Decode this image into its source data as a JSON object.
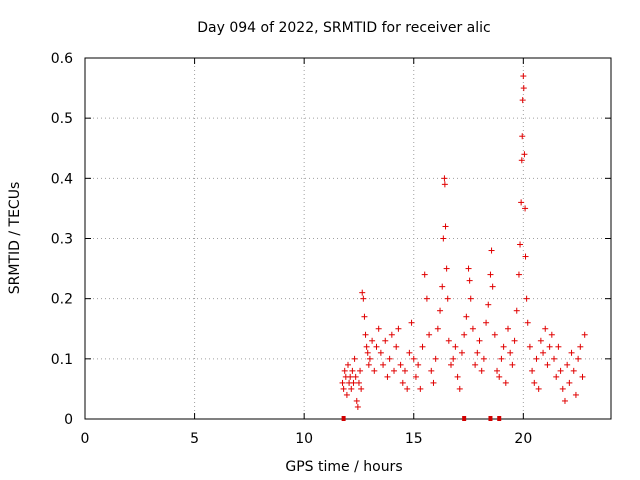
{
  "chart_data": {
    "type": "scatter",
    "title": "Day 094 of 2022, SRMTID for receiver alic",
    "xlabel": "GPS time / hours",
    "ylabel": "SRMTID / TECUs",
    "xlim": [
      0,
      24
    ],
    "ylim": [
      0,
      0.6
    ],
    "xticks": [
      0,
      5,
      10,
      15,
      20
    ],
    "yticks": [
      0,
      0.1,
      0.2,
      0.3,
      0.4,
      0.5,
      0.6
    ],
    "ytick_labels": [
      "0",
      "0.1",
      "0.2",
      "0.3",
      "0.4",
      "0.5",
      "0.6"
    ],
    "grid": true,
    "marker": "+",
    "color": "#e00000",
    "data_gap_markers_x": [
      11.8,
      17.3,
      18.5,
      18.9
    ],
    "series": [
      {
        "name": "SRMTID",
        "points": [
          [
            11.75,
            0.06
          ],
          [
            11.8,
            0.05
          ],
          [
            11.85,
            0.08
          ],
          [
            11.9,
            0.07
          ],
          [
            11.95,
            0.04
          ],
          [
            12.0,
            0.09
          ],
          [
            12.05,
            0.06
          ],
          [
            12.1,
            0.07
          ],
          [
            12.15,
            0.05
          ],
          [
            12.2,
            0.08
          ],
          [
            12.25,
            0.06
          ],
          [
            12.3,
            0.1
          ],
          [
            12.35,
            0.07
          ],
          [
            12.4,
            0.03
          ],
          [
            12.45,
            0.02
          ],
          [
            12.5,
            0.06
          ],
          [
            12.55,
            0.08
          ],
          [
            12.6,
            0.05
          ],
          [
            12.65,
            0.21
          ],
          [
            12.7,
            0.2
          ],
          [
            12.75,
            0.17
          ],
          [
            12.8,
            0.14
          ],
          [
            12.85,
            0.12
          ],
          [
            12.9,
            0.11
          ],
          [
            12.95,
            0.09
          ],
          [
            13.0,
            0.1
          ],
          [
            13.1,
            0.13
          ],
          [
            13.2,
            0.08
          ],
          [
            13.3,
            0.12
          ],
          [
            13.4,
            0.15
          ],
          [
            13.5,
            0.11
          ],
          [
            13.6,
            0.09
          ],
          [
            13.7,
            0.13
          ],
          [
            13.8,
            0.07
          ],
          [
            13.9,
            0.1
          ],
          [
            14.0,
            0.14
          ],
          [
            14.1,
            0.08
          ],
          [
            14.2,
            0.12
          ],
          [
            14.3,
            0.15
          ],
          [
            14.4,
            0.09
          ],
          [
            14.5,
            0.06
          ],
          [
            14.6,
            0.08
          ],
          [
            14.7,
            0.05
          ],
          [
            14.8,
            0.11
          ],
          [
            14.9,
            0.16
          ],
          [
            15.0,
            0.1
          ],
          [
            15.1,
            0.07
          ],
          [
            15.2,
            0.09
          ],
          [
            15.3,
            0.05
          ],
          [
            15.4,
            0.12
          ],
          [
            15.5,
            0.24
          ],
          [
            15.6,
            0.2
          ],
          [
            15.7,
            0.14
          ],
          [
            15.8,
            0.08
          ],
          [
            15.9,
            0.06
          ],
          [
            16.0,
            0.1
          ],
          [
            16.1,
            0.15
          ],
          [
            16.2,
            0.18
          ],
          [
            16.3,
            0.22
          ],
          [
            16.35,
            0.3
          ],
          [
            16.4,
            0.4
          ],
          [
            16.42,
            0.39
          ],
          [
            16.45,
            0.32
          ],
          [
            16.5,
            0.25
          ],
          [
            16.55,
            0.2
          ],
          [
            16.6,
            0.13
          ],
          [
            16.7,
            0.09
          ],
          [
            16.8,
            0.1
          ],
          [
            16.9,
            0.12
          ],
          [
            17.0,
            0.07
          ],
          [
            17.1,
            0.05
          ],
          [
            17.2,
            0.11
          ],
          [
            17.3,
            0.14
          ],
          [
            17.4,
            0.17
          ],
          [
            17.5,
            0.25
          ],
          [
            17.55,
            0.23
          ],
          [
            17.6,
            0.2
          ],
          [
            17.7,
            0.15
          ],
          [
            17.8,
            0.09
          ],
          [
            17.9,
            0.11
          ],
          [
            18.0,
            0.13
          ],
          [
            18.1,
            0.08
          ],
          [
            18.2,
            0.1
          ],
          [
            18.3,
            0.16
          ],
          [
            18.4,
            0.19
          ],
          [
            18.5,
            0.24
          ],
          [
            18.55,
            0.28
          ],
          [
            18.6,
            0.22
          ],
          [
            18.7,
            0.14
          ],
          [
            18.8,
            0.08
          ],
          [
            18.9,
            0.07
          ],
          [
            19.0,
            0.1
          ],
          [
            19.1,
            0.12
          ],
          [
            19.2,
            0.06
          ],
          [
            19.3,
            0.15
          ],
          [
            19.4,
            0.11
          ],
          [
            19.5,
            0.09
          ],
          [
            19.6,
            0.13
          ],
          [
            19.7,
            0.18
          ],
          [
            19.8,
            0.24
          ],
          [
            19.85,
            0.29
          ],
          [
            19.9,
            0.36
          ],
          [
            19.93,
            0.43
          ],
          [
            19.95,
            0.47
          ],
          [
            19.97,
            0.53
          ],
          [
            20.0,
            0.57
          ],
          [
            20.02,
            0.55
          ],
          [
            20.05,
            0.44
          ],
          [
            20.08,
            0.35
          ],
          [
            20.1,
            0.27
          ],
          [
            20.15,
            0.2
          ],
          [
            20.2,
            0.16
          ],
          [
            20.3,
            0.12
          ],
          [
            20.4,
            0.08
          ],
          [
            20.5,
            0.06
          ],
          [
            20.6,
            0.1
          ],
          [
            20.7,
            0.05
          ],
          [
            20.8,
            0.13
          ],
          [
            20.9,
            0.11
          ],
          [
            21.0,
            0.15
          ],
          [
            21.1,
            0.09
          ],
          [
            21.2,
            0.12
          ],
          [
            21.3,
            0.14
          ],
          [
            21.4,
            0.1
          ],
          [
            21.5,
            0.07
          ],
          [
            21.6,
            0.12
          ],
          [
            21.7,
            0.08
          ],
          [
            21.8,
            0.05
          ],
          [
            21.9,
            0.03
          ],
          [
            22.0,
            0.09
          ],
          [
            22.1,
            0.06
          ],
          [
            22.2,
            0.11
          ],
          [
            22.3,
            0.08
          ],
          [
            22.4,
            0.04
          ],
          [
            22.5,
            0.1
          ],
          [
            22.6,
            0.12
          ],
          [
            22.7,
            0.07
          ],
          [
            22.8,
            0.14
          ]
        ]
      }
    ]
  }
}
